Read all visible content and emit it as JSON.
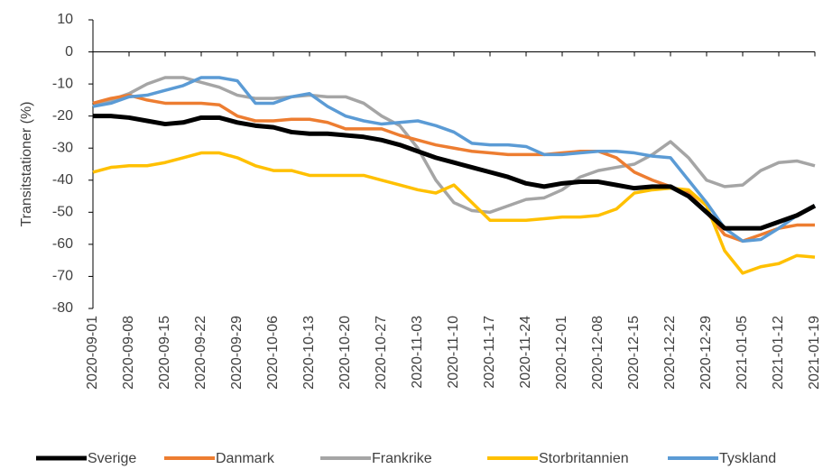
{
  "chart_data": {
    "type": "line",
    "y_label": "Transitstationer (%)",
    "categories": [
      "2020-09-01",
      null,
      "2020-09-08",
      null,
      "2020-09-15",
      null,
      "2020-09-22",
      null,
      "2020-09-29",
      null,
      "2020-10-06",
      null,
      "2020-10-13",
      null,
      "2020-10-20",
      null,
      "2020-10-27",
      null,
      "2020-11-03",
      null,
      "2020-11-10",
      null,
      "2020-11-17",
      null,
      "2020-11-24",
      null,
      "2020-12-01",
      null,
      "2020-12-08",
      null,
      "2020-12-15",
      null,
      "2020-12-22",
      null,
      "2020-12-29",
      null,
      "2021-01-05",
      null,
      "2021-01-12",
      null,
      "2021-01-19"
    ],
    "series": [
      {
        "name": "Sverige",
        "color": "#000000",
        "values": [
          -20,
          -20,
          -20.5,
          -21.5,
          -22.5,
          -22,
          -20.5,
          -20.5,
          -22,
          -23,
          -23.5,
          -25,
          -25.5,
          -25.5,
          -26,
          -26.5,
          -27.5,
          -29,
          -31,
          -33,
          -34.5,
          -36,
          -37.5,
          -39,
          -41,
          -42,
          -41,
          -40.5,
          -40.5,
          -41.5,
          -42.5,
          -42,
          -42,
          -45,
          -50,
          -55,
          -55,
          -55,
          -53,
          -51,
          -48
        ]
      },
      {
        "name": "Danmark",
        "color": "#ed7d31",
        "values": [
          -16,
          -14.5,
          -13.5,
          -15,
          -16,
          -16,
          -16,
          -16.5,
          -20,
          -21.5,
          -21.5,
          -21,
          -21,
          -22,
          -24,
          -24,
          -24,
          -26,
          -27.5,
          -29,
          -30,
          -31,
          -31.5,
          -32,
          -32,
          -32,
          -31.5,
          -31,
          -31,
          -33,
          -37.5,
          -40,
          -42,
          -44,
          -50,
          -57,
          -59,
          -57,
          -55,
          -54,
          -54
        ]
      },
      {
        "name": "Frankrike",
        "color": "#a5a5a5",
        "values": [
          -17,
          -15,
          -13,
          -10,
          -8,
          -8,
          -9.5,
          -11,
          -13.5,
          -14.5,
          -14.5,
          -14,
          -13.5,
          -14,
          -14,
          -16,
          -20,
          -23,
          -30,
          -40,
          -47,
          -49.5,
          -50,
          -48,
          -46,
          -45.5,
          -43,
          -39,
          -37,
          -36,
          -35,
          -32,
          -28,
          -33,
          -40,
          -42,
          -41.5,
          -37,
          -34.5,
          -34,
          -35.5
        ]
      },
      {
        "name": "Storbritannien",
        "color": "#ffc000",
        "values": [
          -37.5,
          -36,
          -35.5,
          -35.5,
          -34.5,
          -33,
          -31.5,
          -31.5,
          -33,
          -35.5,
          -37,
          -37,
          -38.5,
          -38.5,
          -38.5,
          -38.5,
          -40,
          -41.5,
          -43,
          -44,
          -41.5,
          -47,
          -52.5,
          -52.5,
          -52.5,
          -52,
          -51.5,
          -51.5,
          -51,
          -49,
          -44,
          -43,
          -42.5,
          -43,
          -48,
          -62,
          -69,
          -67,
          -66,
          -63.5,
          -64
        ]
      },
      {
        "name": "Tyskland",
        "color": "#5b9bd5",
        "values": [
          -17,
          -16,
          -14,
          -13.5,
          -12,
          -10.5,
          -8,
          -8,
          -9,
          -16,
          -16,
          -14,
          -13,
          -17,
          -20,
          -21.5,
          -22.5,
          -22,
          -21.5,
          -23,
          -25,
          -28.5,
          -29,
          -29,
          -29.5,
          -32,
          -32,
          -31.5,
          -31,
          -31,
          -31.5,
          -32.5,
          -33,
          -40,
          -47,
          -55,
          -59,
          -58.5,
          -55,
          -51,
          -48
        ]
      }
    ],
    "ylim": [
      -80,
      10
    ],
    "yticks": [
      -80,
      -70,
      -60,
      -50,
      -40,
      -30,
      -20,
      -10,
      0,
      10
    ],
    "legend": "bottom"
  }
}
